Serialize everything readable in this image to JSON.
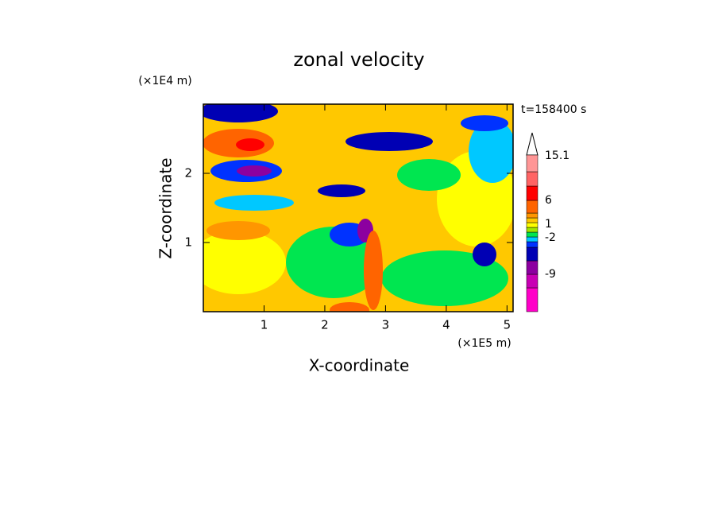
{
  "chart_data": {
    "type": "contour",
    "title": "zonal velocity",
    "x_label": "X-coordinate",
    "y_label": "Z-coordinate",
    "x_unit": "(×1E5 m)",
    "y_unit": "(×1E4 m)",
    "time_label": "t=158400 s",
    "xlim": [
      0,
      5.1
    ],
    "ylim": [
      0,
      3
    ],
    "xticks": [
      1,
      2,
      3,
      4,
      5
    ],
    "yticks": [
      1,
      2
    ],
    "colorbar": {
      "colors": [
        "#ff00c8",
        "#c800b4",
        "#8c00a0",
        "#0000b4",
        "#0032ff",
        "#00c8ff",
        "#00e650",
        "#a0e600",
        "#ffff00",
        "#ffc800",
        "#ff9600",
        "#ff6400",
        "#ff0000",
        "#ff6464",
        "#ff9696",
        "#ffc8c8"
      ],
      "ticks": [
        15.1,
        6,
        1,
        -2,
        -9
      ]
    }
  }
}
